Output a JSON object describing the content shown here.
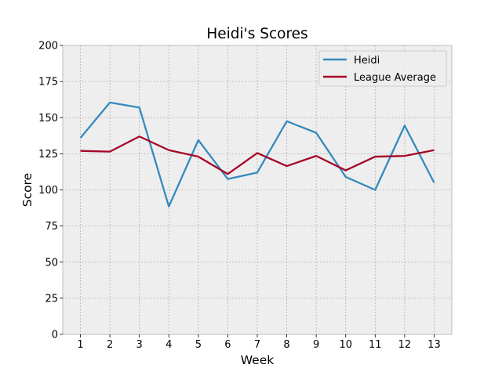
{
  "chart_data": {
    "type": "line",
    "title": "Heidi's Scores",
    "xlabel": "Week",
    "ylabel": "Score",
    "x": [
      1,
      2,
      3,
      4,
      5,
      6,
      7,
      8,
      9,
      10,
      11,
      12,
      13
    ],
    "xlim": [
      0.4,
      13.6
    ],
    "ylim": [
      0,
      200
    ],
    "yticks": [
      0,
      25,
      50,
      75,
      100,
      125,
      150,
      175,
      200
    ],
    "grid": true,
    "legend_position": "top-right",
    "series": [
      {
        "name": "Heidi",
        "color": "#348ABD",
        "values": [
          136,
          160.5,
          157,
          88.5,
          134.5,
          107.5,
          112,
          147.5,
          139.5,
          109,
          100,
          144.5,
          105
        ]
      },
      {
        "name": "League Average",
        "color": "#A60628",
        "values": [
          127,
          126.5,
          137,
          127.5,
          123,
          111,
          125.5,
          116.5,
          123.5,
          113.5,
          123,
          123.5,
          127.5
        ]
      }
    ],
    "colors": {
      "plot_background": "#EEEEEE",
      "grid": "#B2B2B2",
      "spine": "#BCBCBC",
      "text": "#000000"
    }
  }
}
